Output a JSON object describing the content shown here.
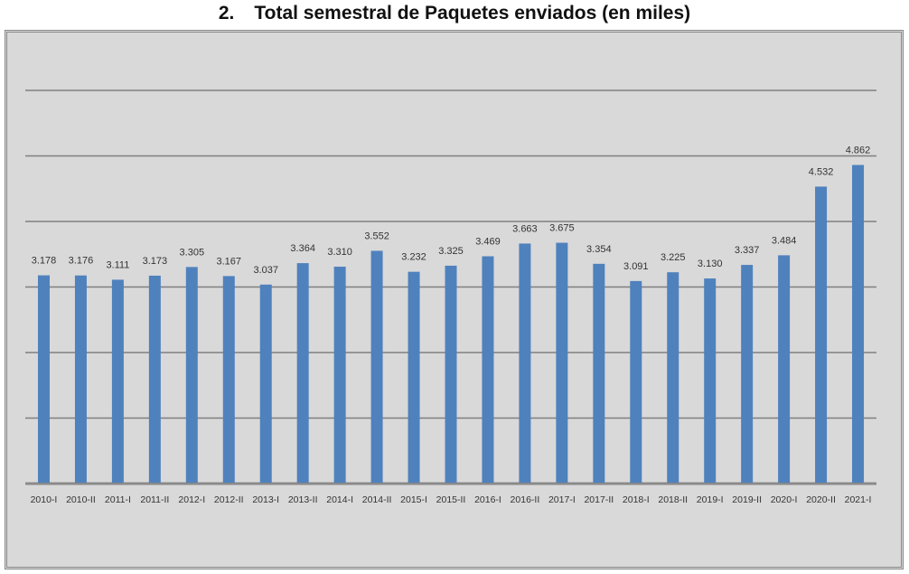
{
  "chart_data": {
    "type": "bar",
    "title_number": "2.",
    "title": "Total semestral de Paquetes enviados (en miles)",
    "categories": [
      "2010-I",
      "2010-II",
      "2011-I",
      "2011-II",
      "2012-I",
      "2012-II",
      "2013-I",
      "2013-II",
      "2014-I",
      "2014-II",
      "2015-I",
      "2015-II",
      "2016-I",
      "2016-II",
      "2017-I",
      "2017-II",
      "2018-I",
      "2018-II",
      "2019-I",
      "2019-II",
      "2020-I",
      "2020-II",
      "2021-I"
    ],
    "values": [
      3178,
      3176,
      3111,
      3173,
      3305,
      3167,
      3037,
      3364,
      3310,
      3552,
      3232,
      3325,
      3469,
      3663,
      3675,
      3354,
      3091,
      3225,
      3130,
      3337,
      3484,
      4532,
      4862
    ],
    "data_labels": [
      "3.178",
      "3.176",
      "3.111",
      "3.173",
      "3.305",
      "3.167",
      "3.037",
      "3.364",
      "3.310",
      "3.552",
      "3.232",
      "3.325",
      "3.469",
      "3.663",
      "3.675",
      "3.354",
      "3.091",
      "3.225",
      "3.130",
      "3.337",
      "3.484",
      "4.532",
      "4.862"
    ],
    "xlabel": "",
    "ylabel": "",
    "ylim": [
      0,
      6000
    ],
    "ygrid_step": 1000,
    "grid": true,
    "legend": "none",
    "colors": {
      "bar": "#4f81bd",
      "grid": "#808080",
      "background": "#d9d9d9"
    }
  }
}
